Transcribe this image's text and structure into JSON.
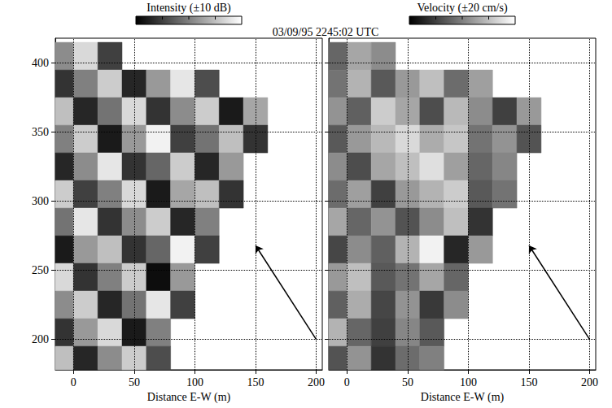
{
  "chart_data": [
    {
      "type": "heatmap",
      "title": "Intensity (±10 dB)",
      "annotation": "03/09/95 2245:02 UTC",
      "xlabel": "Distance E-W (m)",
      "x": [
        -10,
        10,
        30,
        50,
        70,
        90,
        110,
        130,
        150,
        170,
        190
      ],
      "y": [
        405,
        385,
        365,
        345,
        325,
        305,
        285,
        265,
        245,
        225,
        205,
        185
      ],
      "values": [
        [
          1,
          7,
          -5,
          null,
          null,
          null,
          null,
          null,
          null,
          null,
          null
        ],
        [
          -6,
          0,
          6,
          -7,
          2,
          8,
          -4,
          null,
          null,
          null,
          null
        ],
        [
          5,
          -7,
          -1,
          7,
          -6,
          1,
          6,
          -8,
          3,
          null,
          null
        ],
        [
          0,
          6,
          -8,
          2,
          9,
          -5,
          -1,
          5,
          -6,
          null,
          null
        ],
        [
          -7,
          1,
          8,
          -6,
          -2,
          6,
          -7,
          2,
          null,
          null,
          null
        ],
        [
          6,
          -5,
          0,
          7,
          -8,
          3,
          5,
          -6,
          null,
          null,
          null
        ],
        [
          -1,
          8,
          -6,
          1,
          6,
          -7,
          0,
          null,
          null,
          null,
          null
        ],
        [
          -8,
          2,
          5,
          -6,
          -2,
          9,
          -5,
          null,
          null,
          null,
          null
        ],
        [
          7,
          -6,
          0,
          6,
          -9,
          2,
          null,
          null,
          null,
          null,
          null
        ],
        [
          1,
          6,
          -7,
          -1,
          8,
          -5,
          null,
          null,
          null,
          null,
          null
        ],
        [
          -6,
          2,
          7,
          -8,
          0,
          null,
          null,
          null,
          null,
          null,
          null
        ],
        [
          5,
          -7,
          1,
          6,
          -4,
          null,
          null,
          null,
          null,
          null,
          null
        ]
      ],
      "colorbar": {
        "range": [
          -10,
          10
        ]
      },
      "xlim": [
        -15,
        205
      ],
      "ylim": [
        178,
        418
      ],
      "xticks": [
        0,
        50,
        100,
        150,
        200
      ],
      "yticks": [
        200,
        250,
        300,
        350,
        400
      ],
      "grid": true,
      "arrow": [
        [
          200,
          200
        ],
        [
          150,
          268
        ]
      ]
    },
    {
      "type": "heatmap",
      "title": "Velocity (±20 cm/s)",
      "xlabel": "Distance E-W (m)",
      "x": [
        -10,
        10,
        30,
        50,
        70,
        90,
        110,
        130,
        150,
        170,
        190
      ],
      "y": [
        405,
        385,
        365,
        345,
        325,
        305,
        285,
        265,
        245,
        225,
        205,
        185
      ],
      "values": [
        [
          -4,
          6,
          2,
          null,
          null,
          null,
          null,
          null,
          null,
          null,
          null
        ],
        [
          -2,
          8,
          -6,
          4,
          10,
          -3,
          5,
          null,
          null,
          null,
          null
        ],
        [
          3,
          -5,
          12,
          6,
          -8,
          9,
          2,
          -10,
          4,
          null,
          null
        ],
        [
          -6,
          4,
          9,
          14,
          7,
          11,
          -2,
          3,
          -7,
          null,
          null
        ],
        [
          2,
          -8,
          6,
          10,
          15,
          5,
          -4,
          1,
          null,
          null,
          null
        ],
        [
          -3,
          5,
          -10,
          4,
          8,
          12,
          -6,
          -2,
          null,
          null,
          null
        ],
        [
          6,
          -4,
          3,
          -7,
          2,
          10,
          -12,
          null,
          null,
          null,
          null
        ],
        [
          -9,
          2,
          -5,
          8,
          18,
          -14,
          4,
          null,
          null,
          null,
          null
        ],
        [
          4,
          10,
          -6,
          -2,
          6,
          -4,
          null,
          null,
          null,
          null,
          null
        ],
        [
          -5,
          7,
          -9,
          3,
          -11,
          2,
          null,
          null,
          null,
          null,
          null
        ],
        [
          8,
          -4,
          -10,
          1,
          -6,
          null,
          null,
          null,
          null,
          null,
          null
        ],
        [
          -7,
          3,
          -12,
          -3,
          0,
          null,
          null,
          null,
          null,
          null,
          null
        ]
      ],
      "colorbar": {
        "range": [
          -20,
          20
        ]
      },
      "xlim": [
        -15,
        205
      ],
      "ylim": [
        178,
        418
      ],
      "xticks": [
        0,
        50,
        100,
        150,
        200
      ],
      "yticks": [
        200,
        250,
        300,
        350,
        400
      ],
      "grid": true,
      "tick_labels": "x",
      "arrow": [
        [
          200,
          200
        ],
        [
          150,
          268
        ]
      ]
    }
  ]
}
